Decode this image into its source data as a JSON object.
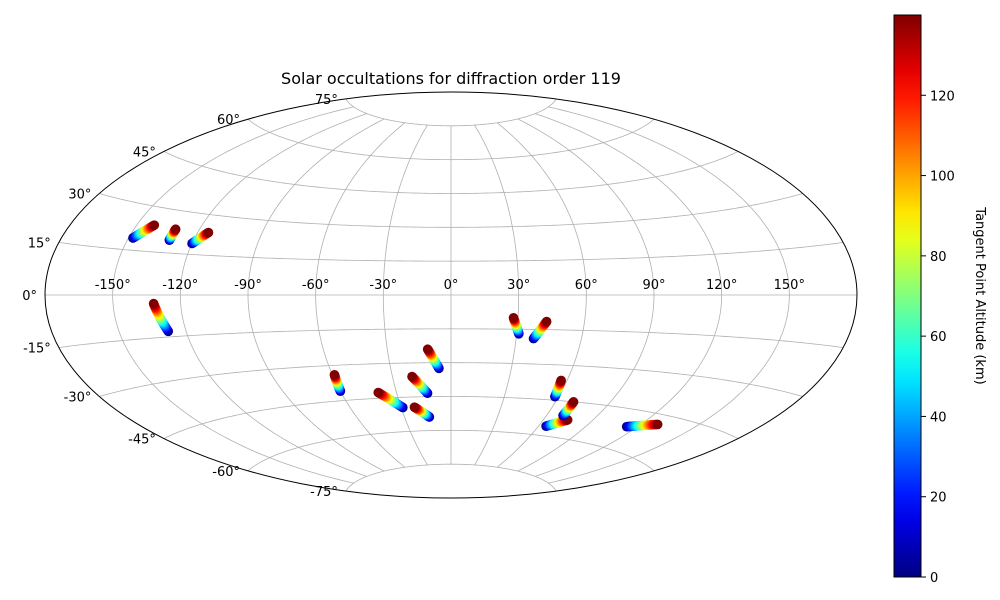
{
  "chart_data": {
    "type": "scatter",
    "title": "Solar occultations for diffraction order 119",
    "projection": "aitoff",
    "grid": true,
    "x_tick_labels": [
      "-150°",
      "-120°",
      "-90°",
      "-60°",
      "-30°",
      "0°",
      "30°",
      "60°",
      "90°",
      "120°",
      "150°"
    ],
    "x_ticks": [
      -150,
      -120,
      -90,
      -60,
      -30,
      0,
      30,
      60,
      90,
      120,
      150
    ],
    "y_tick_labels": [
      "-75°",
      "-60°",
      "-45°",
      "-30°",
      "-15°",
      "0°",
      "15°",
      "30°",
      "45°",
      "60°",
      "75°"
    ],
    "y_ticks": [
      -75,
      -60,
      -45,
      -30,
      -15,
      0,
      15,
      30,
      45,
      60,
      75
    ],
    "colorbar": {
      "label": "Tangent Point Altitude (km)",
      "range": [
        0,
        140
      ],
      "tick_labels": [
        "0",
        "20",
        "40",
        "60",
        "80",
        "100",
        "120"
      ],
      "ticks": [
        0,
        20,
        40,
        60,
        80,
        100,
        120
      ],
      "colormap": "jet",
      "placement": "right"
    },
    "series": [
      {
        "lon_start": -148,
        "lat_start": 19,
        "lon_end": -142,
        "lat_end": 24,
        "alt_start": 0,
        "alt_end": 140
      },
      {
        "lon_start": -131,
        "lat_start": 19.5,
        "lon_end": -131,
        "lat_end": 23.5,
        "alt_start": 0,
        "alt_end": 140
      },
      {
        "lon_start": -120,
        "lat_start": 19,
        "lon_end": -115,
        "lat_end": 23.5,
        "alt_start": 0,
        "alt_end": 140
      },
      {
        "lon_start": -128,
        "lat_start": -13,
        "lon_end": -132,
        "lat_end": -3,
        "alt_start": 0,
        "alt_end": 140
      },
      {
        "lon_start": -60,
        "lat_start": -41,
        "lon_end": -59,
        "lat_end": -34,
        "alt_start": 0,
        "alt_end": 140
      },
      {
        "lon_start": -29,
        "lat_start": -49.5,
        "lon_end": -40,
        "lat_end": -42.5,
        "alt_start": 0,
        "alt_end": 140
      },
      {
        "lon_start": -13,
        "lat_start": -43.5,
        "lon_end": -20,
        "lat_end": -36,
        "alt_start": 0,
        "alt_end": 140
      },
      {
        "lon_start": -14,
        "lat_start": -54,
        "lon_end": -22,
        "lat_end": -49.5,
        "alt_start": 0,
        "alt_end": 140
      },
      {
        "lon_start": -6,
        "lat_start": -32.5,
        "lon_end": -11,
        "lat_end": -24,
        "alt_start": 0,
        "alt_end": 140
      },
      {
        "lon_start": 31,
        "lat_start": -17,
        "lon_end": 28,
        "lat_end": -10,
        "alt_start": 0,
        "alt_end": 140
      },
      {
        "lon_start": 38,
        "lat_start": -19,
        "lon_end": 43,
        "lat_end": -11.5,
        "alt_start": 0,
        "alt_end": 140
      },
      {
        "lon_start": 58,
        "lat_start": -43.5,
        "lon_end": 57,
        "lat_end": -36.5,
        "alt_start": 0,
        "alt_end": 140
      },
      {
        "lon_start": 65,
        "lat_start": -56,
        "lon_end": 75,
        "lat_end": -52.5,
        "alt_start": 0,
        "alt_end": 140
      },
      {
        "lon_start": 70,
        "lat_start": -51,
        "lon_end": 70,
        "lat_end": -45,
        "alt_start": 0,
        "alt_end": 140
      },
      {
        "lon_start": 114,
        "lat_start": -51.5,
        "lon_end": 129,
        "lat_end": -48.5,
        "alt_start": 0,
        "alt_end": 140
      }
    ]
  }
}
